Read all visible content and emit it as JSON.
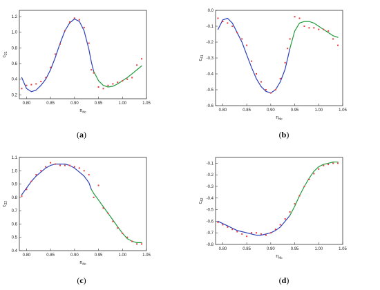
{
  "chart_data": [
    {
      "panel": "(a)",
      "panel_letter": "a",
      "type": "scatter",
      "xlabel": "n",
      "xlabel_sub": "rlc",
      "ylabel": "c",
      "ylabel_sub": "21",
      "xlim": [
        0.785,
        1.05
      ],
      "ylim": [
        0.15,
        1.28
      ],
      "xticks": [
        "0.80",
        "0.85",
        "0.90",
        "0.95",
        "1.00",
        "1.05"
      ],
      "yticks": [
        "0.2",
        "0.4",
        "0.6",
        "0.8",
        "1.0",
        "1.2"
      ],
      "series": [
        {
          "kind": "points",
          "color": "#e83a3a",
          "x": [
            0.79,
            0.8,
            0.81,
            0.82,
            0.83,
            0.84,
            0.85,
            0.86,
            0.87,
            0.88,
            0.89,
            0.9,
            0.91,
            0.92,
            0.93,
            0.935,
            0.94,
            0.95,
            0.96,
            0.97,
            0.98,
            0.99,
            1.0,
            1.01,
            1.02,
            1.03,
            1.04
          ],
          "y": [
            0.28,
            0.32,
            0.33,
            0.34,
            0.37,
            0.42,
            0.55,
            0.72,
            0.85,
            1.02,
            1.13,
            1.18,
            1.16,
            1.06,
            0.86,
            0.52,
            0.48,
            0.3,
            0.28,
            0.32,
            0.34,
            0.36,
            0.38,
            0.4,
            0.42,
            0.58,
            0.66
          ]
        },
        {
          "kind": "line",
          "color": "#2b3fb8",
          "x": [
            0.79,
            0.8,
            0.81,
            0.82,
            0.83,
            0.84,
            0.85,
            0.86,
            0.87,
            0.88,
            0.89,
            0.9,
            0.91,
            0.92,
            0.93,
            0.935,
            0.94
          ],
          "y": [
            0.42,
            0.28,
            0.24,
            0.26,
            0.32,
            0.4,
            0.52,
            0.68,
            0.86,
            1.02,
            1.12,
            1.17,
            1.14,
            1.02,
            0.78,
            0.62,
            0.5
          ]
        },
        {
          "kind": "line",
          "color": "#1e9a3b",
          "x": [
            0.94,
            0.95,
            0.96,
            0.97,
            0.98,
            0.99,
            1.0,
            1.01,
            1.02,
            1.03,
            1.04
          ],
          "y": [
            0.5,
            0.38,
            0.32,
            0.3,
            0.31,
            0.34,
            0.38,
            0.42,
            0.47,
            0.52,
            0.57
          ]
        }
      ]
    },
    {
      "panel": "(b)",
      "panel_letter": "b",
      "type": "scatter",
      "xlabel": "n",
      "xlabel_sub": "rlc",
      "ylabel": "c",
      "ylabel_sub": "41",
      "xlim": [
        0.785,
        1.05
      ],
      "ylim": [
        -0.6,
        0.0
      ],
      "xticks": [
        "0.80",
        "0.85",
        "0.90",
        "0.95",
        "1.00",
        "1.05"
      ],
      "yticks": [
        "-0.6",
        "-0.5",
        "-0.4",
        "-0.3",
        "-0.2",
        "-0.1",
        "0.0"
      ],
      "series": [
        {
          "kind": "points",
          "color": "#e83a3a",
          "x": [
            0.79,
            0.8,
            0.81,
            0.82,
            0.83,
            0.84,
            0.85,
            0.86,
            0.87,
            0.88,
            0.89,
            0.9,
            0.91,
            0.92,
            0.93,
            0.935,
            0.94,
            0.95,
            0.96,
            0.97,
            0.98,
            0.99,
            1.0,
            1.01,
            1.02,
            1.03,
            1.04
          ],
          "y": [
            -0.05,
            -0.07,
            -0.08,
            -0.1,
            -0.14,
            -0.18,
            -0.22,
            -0.32,
            -0.4,
            -0.45,
            -0.5,
            -0.52,
            -0.5,
            -0.43,
            -0.33,
            -0.24,
            -0.18,
            -0.04,
            -0.05,
            -0.1,
            -0.11,
            -0.11,
            -0.12,
            -0.12,
            -0.13,
            -0.18,
            -0.22
          ]
        },
        {
          "kind": "line",
          "color": "#2b3fb8",
          "x": [
            0.79,
            0.8,
            0.81,
            0.82,
            0.83,
            0.84,
            0.85,
            0.86,
            0.87,
            0.88,
            0.89,
            0.9,
            0.91,
            0.92,
            0.93,
            0.94
          ],
          "y": [
            -0.12,
            -0.06,
            -0.05,
            -0.08,
            -0.14,
            -0.2,
            -0.28,
            -0.36,
            -0.43,
            -0.48,
            -0.51,
            -0.52,
            -0.5,
            -0.45,
            -0.37,
            -0.24
          ]
        },
        {
          "kind": "line",
          "color": "#1e9a3b",
          "x": [
            0.94,
            0.95,
            0.96,
            0.97,
            0.98,
            0.99,
            1.0,
            1.01,
            1.02,
            1.03,
            1.04
          ],
          "y": [
            -0.24,
            -0.13,
            -0.08,
            -0.07,
            -0.07,
            -0.08,
            -0.1,
            -0.12,
            -0.14,
            -0.16,
            -0.17
          ]
        }
      ]
    },
    {
      "panel": "(c)",
      "panel_letter": "c",
      "type": "scatter",
      "xlabel": "n",
      "xlabel_sub": "rlc",
      "ylabel": "c",
      "ylabel_sub": "22",
      "xlim": [
        0.785,
        1.05
      ],
      "ylim": [
        0.4,
        1.1
      ],
      "xticks": [
        "0.80",
        "0.85",
        "0.90",
        "0.95",
        "1.00",
        "1.05"
      ],
      "yticks": [
        "0.4",
        "0.5",
        "0.6",
        "0.7",
        "0.8",
        "0.9",
        "1.0",
        "1.1"
      ],
      "series": [
        {
          "kind": "points",
          "color": "#e83a3a",
          "x": [
            0.79,
            0.8,
            0.81,
            0.82,
            0.83,
            0.84,
            0.85,
            0.86,
            0.87,
            0.88,
            0.89,
            0.9,
            0.91,
            0.92,
            0.93,
            0.94,
            0.95,
            0.96,
            0.97,
            0.98,
            0.99,
            1.0,
            1.01,
            1.02,
            1.03,
            1.04
          ],
          "y": [
            0.81,
            0.86,
            0.92,
            0.97,
            1.0,
            1.03,
            1.06,
            1.05,
            1.04,
            1.04,
            1.04,
            1.03,
            1.02,
            1.0,
            0.97,
            0.8,
            0.89,
            0.72,
            0.68,
            0.62,
            0.57,
            0.53,
            0.5,
            0.47,
            0.45,
            0.45
          ]
        },
        {
          "kind": "line",
          "color": "#2b3fb8",
          "x": [
            0.79,
            0.8,
            0.81,
            0.82,
            0.83,
            0.84,
            0.85,
            0.86,
            0.87,
            0.88,
            0.89,
            0.9,
            0.91,
            0.92,
            0.93,
            0.935
          ],
          "y": [
            0.82,
            0.87,
            0.92,
            0.96,
            0.99,
            1.02,
            1.04,
            1.05,
            1.05,
            1.05,
            1.04,
            1.02,
            0.99,
            0.96,
            0.91,
            0.86
          ]
        },
        {
          "kind": "line",
          "color": "#1e9a3b",
          "x": [
            0.935,
            0.94,
            0.95,
            0.96,
            0.97,
            0.98,
            0.99,
            1.0,
            1.01,
            1.02,
            1.03,
            1.04
          ],
          "y": [
            0.86,
            0.83,
            0.78,
            0.73,
            0.68,
            0.63,
            0.58,
            0.53,
            0.49,
            0.47,
            0.46,
            0.46
          ]
        }
      ]
    },
    {
      "panel": "(d)",
      "panel_letter": "d",
      "type": "scatter",
      "xlabel": "n",
      "xlabel_sub": "rlc",
      "ylabel": "c",
      "ylabel_sub": "42",
      "xlim": [
        0.785,
        1.05
      ],
      "ylim": [
        -0.8,
        -0.05
      ],
      "xticks": [
        "0.80",
        "0.85",
        "0.90",
        "0.95",
        "1.00",
        "1.05"
      ],
      "yticks": [
        "-0.8",
        "-0.7",
        "-0.6",
        "-0.5",
        "-0.4",
        "-0.3",
        "-0.2",
        "-0.1"
      ],
      "series": [
        {
          "kind": "points",
          "color": "#e83a3a",
          "x": [
            0.79,
            0.8,
            0.81,
            0.82,
            0.83,
            0.84,
            0.85,
            0.86,
            0.87,
            0.88,
            0.89,
            0.9,
            0.91,
            0.92,
            0.93,
            0.94,
            0.95,
            0.96,
            0.97,
            0.98,
            0.99,
            1.0,
            1.01,
            1.02,
            1.03,
            1.04
          ],
          "y": [
            -0.61,
            -0.63,
            -0.65,
            -0.67,
            -0.69,
            -0.71,
            -0.73,
            -0.7,
            -0.7,
            -0.71,
            -0.72,
            -0.7,
            -0.67,
            -0.63,
            -0.58,
            -0.52,
            -0.45,
            -0.38,
            -0.3,
            -0.24,
            -0.19,
            -0.15,
            -0.12,
            -0.11,
            -0.1,
            -0.1
          ]
        },
        {
          "kind": "line",
          "color": "#2b3fb8",
          "x": [
            0.79,
            0.8,
            0.81,
            0.82,
            0.83,
            0.84,
            0.85,
            0.86,
            0.87,
            0.88,
            0.89,
            0.9,
            0.91,
            0.92,
            0.93,
            0.94
          ],
          "y": [
            -0.6,
            -0.62,
            -0.64,
            -0.66,
            -0.68,
            -0.69,
            -0.7,
            -0.71,
            -0.72,
            -0.72,
            -0.71,
            -0.7,
            -0.68,
            -0.65,
            -0.6,
            -0.55
          ]
        },
        {
          "kind": "line",
          "color": "#1e9a3b",
          "x": [
            0.94,
            0.95,
            0.96,
            0.97,
            0.98,
            0.99,
            1.0,
            1.01,
            1.02,
            1.03,
            1.04
          ],
          "y": [
            -0.55,
            -0.47,
            -0.38,
            -0.3,
            -0.23,
            -0.17,
            -0.13,
            -0.11,
            -0.1,
            -0.09,
            -0.09
          ]
        }
      ]
    }
  ]
}
